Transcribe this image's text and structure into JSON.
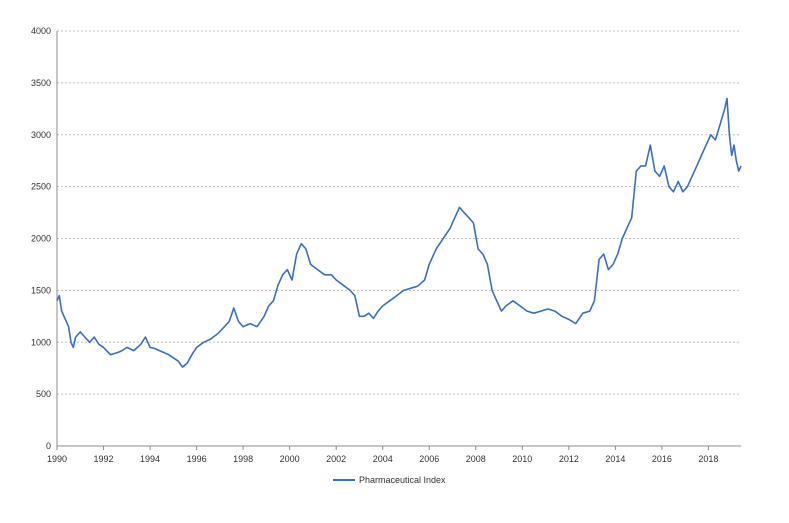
{
  "chart_data": {
    "type": "line",
    "title": "",
    "xlabel": "",
    "ylabel": "",
    "xlim": [
      1990,
      2019.4
    ],
    "ylim": [
      0,
      4000
    ],
    "grid": true,
    "legend_position": "bottom",
    "x_ticks": [
      "1990",
      "1992",
      "1994",
      "1996",
      "1998",
      "2000",
      "2002",
      "2004",
      "2006",
      "2008",
      "2010",
      "2012",
      "2014",
      "2016",
      "2018"
    ],
    "y_ticks": [
      "0",
      "500",
      "1000",
      "1500",
      "2000",
      "2500",
      "3000",
      "3500",
      "4000"
    ],
    "series": [
      {
        "name": "Pharmaceutical Index",
        "color": "#3a6fbf",
        "x": [
          1990.0,
          1990.1,
          1990.2,
          1990.3,
          1990.4,
          1990.5,
          1990.6,
          1990.7,
          1990.8,
          1991.0,
          1991.2,
          1991.4,
          1991.6,
          1991.8,
          1992.0,
          1992.3,
          1992.6,
          1992.8,
          1993.0,
          1993.3,
          1993.6,
          1993.8,
          1994.0,
          1994.2,
          1994.5,
          1994.8,
          1995.0,
          1995.2,
          1995.4,
          1995.6,
          1995.8,
          1996.0,
          1996.3,
          1996.6,
          1996.9,
          1997.2,
          1997.4,
          1997.6,
          1997.8,
          1998.0,
          1998.3,
          1998.6,
          1998.9,
          1999.1,
          1999.3,
          1999.5,
          1999.7,
          1999.9,
          2000.1,
          2000.3,
          2000.5,
          2000.7,
          2000.9,
          2001.2,
          2001.5,
          2001.8,
          2002.0,
          2002.3,
          2002.6,
          2002.8,
          2003.0,
          2003.2,
          2003.4,
          2003.6,
          2003.8,
          2004.0,
          2004.3,
          2004.6,
          2004.9,
          2005.2,
          2005.5,
          2005.8,
          2006.0,
          2006.3,
          2006.6,
          2006.9,
          2007.1,
          2007.3,
          2007.5,
          2007.7,
          2007.9,
          2008.1,
          2008.3,
          2008.5,
          2008.7,
          2008.9,
          2009.1,
          2009.3,
          2009.6,
          2009.9,
          2010.2,
          2010.5,
          2010.8,
          2011.1,
          2011.4,
          2011.7,
          2012.0,
          2012.3,
          2012.6,
          2012.9,
          2013.1,
          2013.3,
          2013.5,
          2013.7,
          2013.9,
          2014.1,
          2014.3,
          2014.5,
          2014.7,
          2014.9,
          2015.1,
          2015.3,
          2015.5,
          2015.7,
          2015.9,
          2016.1,
          2016.3,
          2016.5,
          2016.7,
          2016.9,
          2017.1,
          2017.3,
          2017.5,
          2017.7,
          2017.9,
          2018.1,
          2018.3,
          2018.5,
          2018.7,
          2018.8,
          2018.9,
          2019.0,
          2019.1,
          2019.2,
          2019.3,
          2019.4
        ],
        "y": [
          1400,
          1450,
          1300,
          1250,
          1200,
          1150,
          1000,
          950,
          1050,
          1100,
          1050,
          1000,
          1050,
          980,
          950,
          880,
          900,
          920,
          950,
          920,
          980,
          1050,
          950,
          940,
          910,
          880,
          850,
          820,
          760,
          800,
          880,
          950,
          1000,
          1030,
          1080,
          1150,
          1200,
          1330,
          1200,
          1150,
          1180,
          1150,
          1250,
          1350,
          1400,
          1550,
          1650,
          1700,
          1600,
          1850,
          1950,
          1900,
          1750,
          1700,
          1650,
          1650,
          1600,
          1550,
          1500,
          1450,
          1250,
          1250,
          1280,
          1230,
          1300,
          1350,
          1400,
          1450,
          1500,
          1520,
          1540,
          1600,
          1750,
          1900,
          2000,
          2100,
          2200,
          2300,
          2250,
          2200,
          2150,
          1900,
          1850,
          1750,
          1500,
          1400,
          1300,
          1350,
          1400,
          1350,
          1300,
          1280,
          1300,
          1320,
          1300,
          1250,
          1220,
          1180,
          1280,
          1300,
          1400,
          1800,
          1850,
          1700,
          1750,
          1850,
          2000,
          2100,
          2200,
          2650,
          2700,
          2700,
          2900,
          2650,
          2600,
          2700,
          2500,
          2450,
          2550,
          2450,
          2500,
          2600,
          2700,
          2800,
          2900,
          3000,
          2950,
          3100,
          3250,
          3350,
          3000,
          2800,
          2900,
          2750,
          2650,
          2700
        ]
      }
    ]
  }
}
